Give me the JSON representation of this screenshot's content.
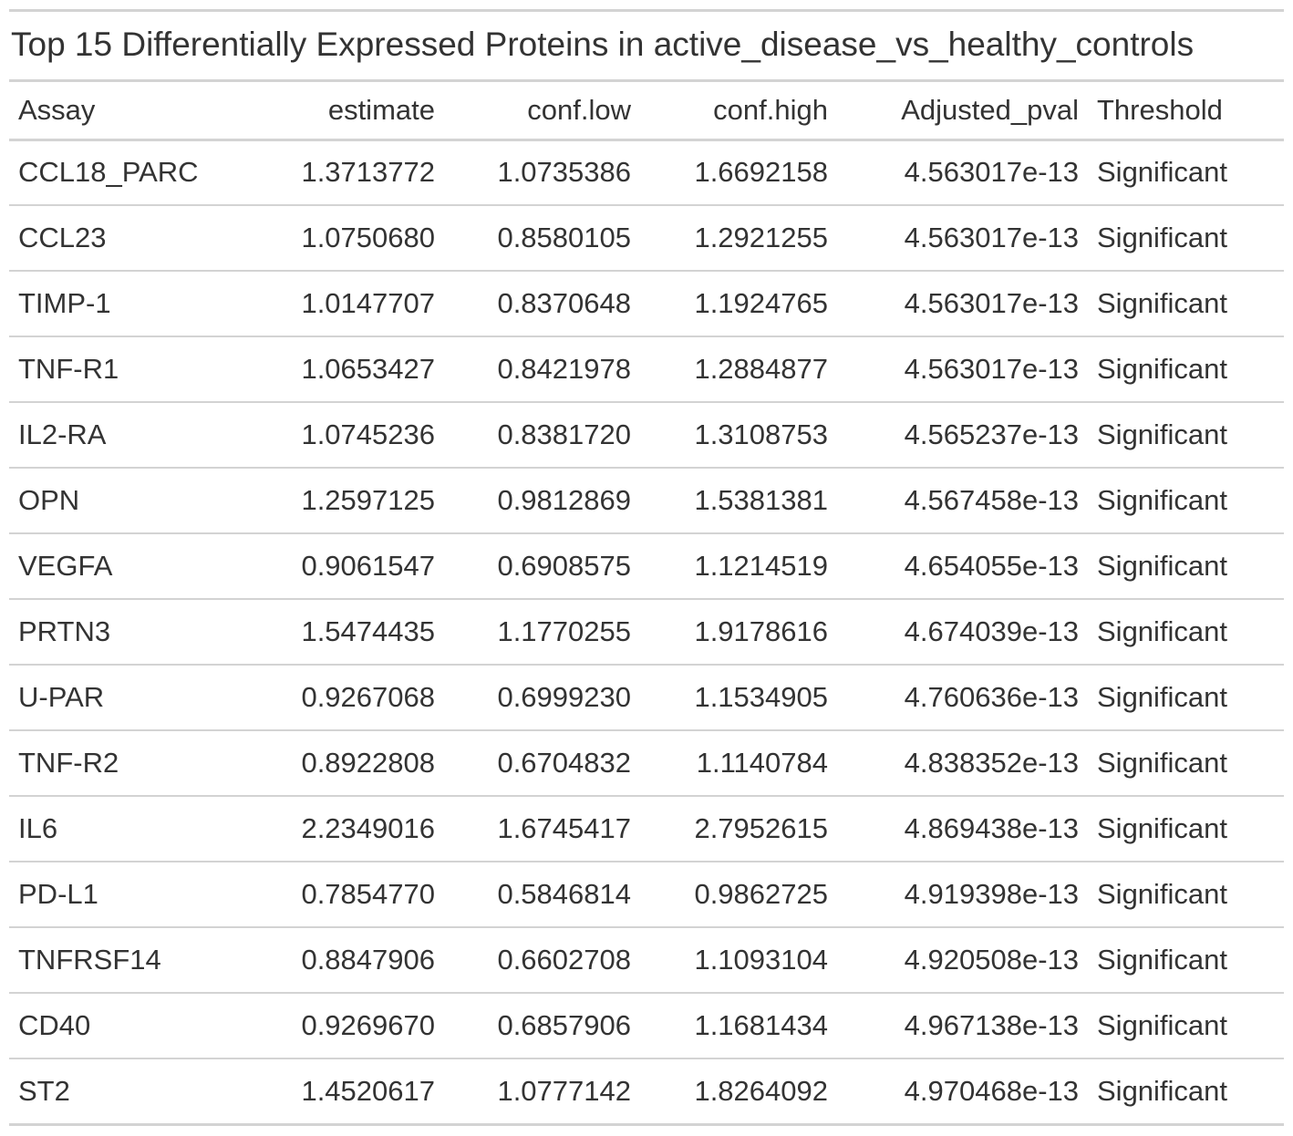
{
  "title": "Top 15 Differentially Expressed Proteins in active_disease_vs_healthy_controls",
  "columns": [
    "Assay",
    "estimate",
    "conf.low",
    "conf.high",
    "Adjusted_pval",
    "Threshold"
  ],
  "rows": [
    [
      "CCL18_PARC",
      "1.3713772",
      "1.0735386",
      "1.6692158",
      "4.563017e-13",
      "Significant"
    ],
    [
      "CCL23",
      "1.0750680",
      "0.8580105",
      "1.2921255",
      "4.563017e-13",
      "Significant"
    ],
    [
      "TIMP-1",
      "1.0147707",
      "0.8370648",
      "1.1924765",
      "4.563017e-13",
      "Significant"
    ],
    [
      "TNF-R1",
      "1.0653427",
      "0.8421978",
      "1.2884877",
      "4.563017e-13",
      "Significant"
    ],
    [
      "IL2-RA",
      "1.0745236",
      "0.8381720",
      "1.3108753",
      "4.565237e-13",
      "Significant"
    ],
    [
      "OPN",
      "1.2597125",
      "0.9812869",
      "1.5381381",
      "4.567458e-13",
      "Significant"
    ],
    [
      "VEGFA",
      "0.9061547",
      "0.6908575",
      "1.1214519",
      "4.654055e-13",
      "Significant"
    ],
    [
      "PRTN3",
      "1.5474435",
      "1.1770255",
      "1.9178616",
      "4.674039e-13",
      "Significant"
    ],
    [
      "U-PAR",
      "0.9267068",
      "0.6999230",
      "1.1534905",
      "4.760636e-13",
      "Significant"
    ],
    [
      "TNF-R2",
      "0.8922808",
      "0.6704832",
      "1.1140784",
      "4.838352e-13",
      "Significant"
    ],
    [
      "IL6",
      "2.2349016",
      "1.6745417",
      "2.7952615",
      "4.869438e-13",
      "Significant"
    ],
    [
      "PD-L1",
      "0.7854770",
      "0.5846814",
      "0.9862725",
      "4.919398e-13",
      "Significant"
    ],
    [
      "TNFRSF14",
      "0.8847906",
      "0.6602708",
      "1.1093104",
      "4.920508e-13",
      "Significant"
    ],
    [
      "CD40",
      "0.9269670",
      "0.6857906",
      "1.1681434",
      "4.967138e-13",
      "Significant"
    ],
    [
      "ST2",
      "1.4520617",
      "1.0777142",
      "1.8264092",
      "4.970468e-13",
      "Significant"
    ]
  ]
}
